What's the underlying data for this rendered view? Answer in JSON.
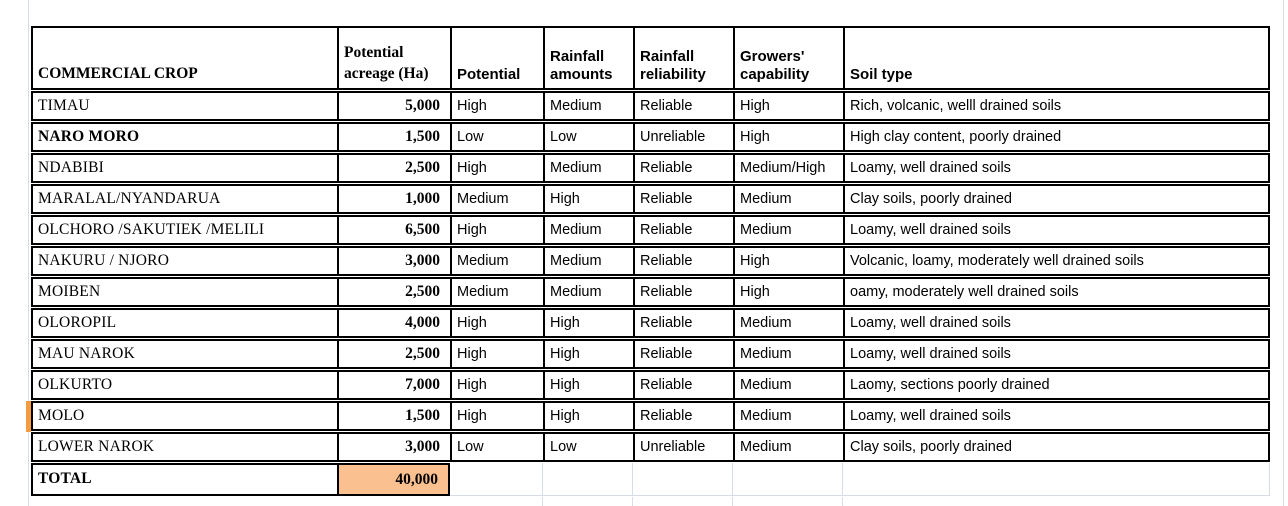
{
  "table": {
    "columns": [
      {
        "label": "COMMERCIAL CROP"
      },
      {
        "label": "Potential acreage (Ha)"
      },
      {
        "label": "Potential"
      },
      {
        "label": "Rainfall amounts"
      },
      {
        "label": "Rainfall reliability"
      },
      {
        "label": "Growers' capability"
      },
      {
        "label": "Soil type"
      }
    ],
    "rows": [
      {
        "crop": "TIMAU",
        "acreage": "5,000",
        "potential": "High",
        "rainfall_amounts": "Medium",
        "rainfall_reliability": "Reliable",
        "growers_capability": "High",
        "soil_type": "Rich, volcanic, welll drained soils",
        "bold": false
      },
      {
        "crop": "NARO MORO",
        "acreage": "1,500",
        "potential": "Low",
        "rainfall_amounts": "Low",
        "rainfall_reliability": "Unreliable",
        "growers_capability": "High",
        "soil_type": "High clay content, poorly drained",
        "bold": true
      },
      {
        "crop": "NDABIBI",
        "acreage": "2,500",
        "potential": "High",
        "rainfall_amounts": "Medium",
        "rainfall_reliability": "Reliable",
        "growers_capability": "Medium/High",
        "soil_type": "Loamy, well drained soils",
        "bold": false
      },
      {
        "crop": "MARALAL/NYANDARUA",
        "acreage": "1,000",
        "potential": "Medium",
        "rainfall_amounts": "High",
        "rainfall_reliability": "Reliable",
        "growers_capability": "Medium",
        "soil_type": "Clay soils, poorly drained",
        "bold": false
      },
      {
        "crop": "OLCHORO /SAKUTIEK /MELILI",
        "acreage": "6,500",
        "potential": "High",
        "rainfall_amounts": "Medium",
        "rainfall_reliability": "Reliable",
        "growers_capability": "Medium",
        "soil_type": "Loamy, well drained soils",
        "bold": false
      },
      {
        "crop": "NAKURU / NJORO",
        "acreage": "3,000",
        "potential": "Medium",
        "rainfall_amounts": "Medium",
        "rainfall_reliability": "Reliable",
        "growers_capability": "High",
        "soil_type": "Volcanic, loamy, moderately well drained soils",
        "bold": false
      },
      {
        "crop": "MOIBEN",
        "acreage": "2,500",
        "potential": "Medium",
        "rainfall_amounts": "Medium",
        "rainfall_reliability": "Reliable",
        "growers_capability": "High",
        "soil_type": "oamy, moderately well drained soils",
        "bold": false
      },
      {
        "crop": "OLOROPIL",
        "acreage": "4,000",
        "potential": "High",
        "rainfall_amounts": "High",
        "rainfall_reliability": "Reliable",
        "growers_capability": "Medium",
        "soil_type": "Loamy, well drained soils",
        "bold": false
      },
      {
        "crop": "MAU NAROK",
        "acreage": "2,500",
        "potential": "High",
        "rainfall_amounts": "High",
        "rainfall_reliability": "Reliable",
        "growers_capability": "Medium",
        "soil_type": "Loamy, well drained soils",
        "bold": false
      },
      {
        "crop": "OLKURTO",
        "acreage": "7,000",
        "potential": "High",
        "rainfall_amounts": "High",
        "rainfall_reliability": "Reliable",
        "growers_capability": "Medium",
        "soil_type": "Laomy, sections poorly drained",
        "bold": false
      },
      {
        "crop": "MOLO",
        "acreage": "1,500",
        "potential": "High",
        "rainfall_amounts": "High",
        "rainfall_reliability": "Reliable",
        "growers_capability": "Medium",
        "soil_type": "Loamy, well drained soils",
        "bold": false
      },
      {
        "crop": "LOWER NAROK",
        "acreage": "3,000",
        "potential": "Low",
        "rainfall_amounts": "Low",
        "rainfall_reliability": "Unreliable",
        "growers_capability": "Medium",
        "soil_type": "Clay soils, poorly drained",
        "bold": false
      }
    ],
    "total": {
      "label": "TOTAL",
      "acreage": "40,000"
    }
  },
  "colors": {
    "total_fill": "#FAC08F",
    "marker": "#F49C42",
    "grid": "#D6DCE8",
    "border": "#000000"
  }
}
